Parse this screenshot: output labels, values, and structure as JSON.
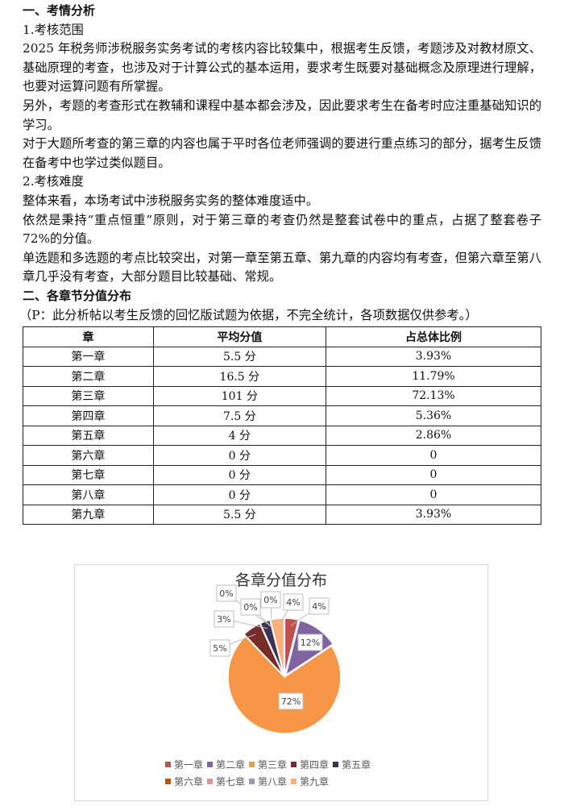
{
  "section1": {
    "heading": "一、考情分析",
    "sub1": "1.考核范围",
    "p1": "2025 年税务师涉税服务实务考试的考核内容比较集中，根据考生反馈，考题涉及对教材原文、基础原理的考查，也涉及对于计算公式的基本运用，要求考生既要对基础概念及原理进行理解，也要对运算问题有所掌握。",
    "p2": "另外，考题的考查形式在教辅和课程中基本都会涉及，因此要求考生在备考时应注重基础知识的学习。",
    "p3": "对于大题所考查的第三章的内容也属于平时各位老师强调的要进行重点练习的部分，据考生反馈在备考中也学过类似题目。",
    "sub2": "2.考核难度",
    "p4": "整体来看，本场考试中涉税服务实务的整体难度适中。",
    "p5": "依然是秉持“重点恒重”原则，对于第三章的考查仍然是整套试卷中的重点，占据了整套卷子 72%的分值。",
    "p6": "单选题和多选题的考点比较突出，对第一章至第五章、第九章的内容均有考查，但第六章至第八章几乎没有考查，大部分题目比较基础、常规。"
  },
  "section2": {
    "heading": "二、各章节分值分布",
    "note": "（P：此分析帖以考生反馈的回忆版试题为依据，不完全统计，各项数据仅供参考。）"
  },
  "table": {
    "headers": [
      "章",
      "平均分值",
      "占总体比例"
    ],
    "rows": [
      [
        "第一章",
        "5.5 分",
        "3.93%"
      ],
      [
        "第二章",
        "16.5 分",
        "11.79%"
      ],
      [
        "第三章",
        "101 分",
        "72.13%"
      ],
      [
        "第四章",
        "7.5 分",
        "5.36%"
      ],
      [
        "第五章",
        "4 分",
        "2.86%"
      ],
      [
        "第六章",
        "0 分",
        "0"
      ],
      [
        "第七章",
        "0 分",
        "0"
      ],
      [
        "第八章",
        "0 分",
        "0"
      ],
      [
        "第九章",
        "5.5 分",
        "3.93%"
      ]
    ]
  },
  "chart_data": {
    "type": "pie",
    "title": "各章分值分布",
    "categories": [
      "第一章",
      "第二章",
      "第三章",
      "第四章",
      "第五章",
      "第六章",
      "第七章",
      "第八章",
      "第九章"
    ],
    "values": [
      3.93,
      11.79,
      72.13,
      5.36,
      2.86,
      0,
      0,
      0,
      3.93
    ],
    "data_labels": [
      "4%",
      "12%",
      "72%",
      "5%",
      "3%",
      "0%",
      "0%",
      "0%",
      "4%"
    ],
    "colors": [
      "#c0504d",
      "#8064a2",
      "#f79646",
      "#772c2a",
      "#3f3151",
      "#b65708",
      "#d99694",
      "#a092be",
      "#fab07a"
    ],
    "legend_placement": "bottom"
  }
}
